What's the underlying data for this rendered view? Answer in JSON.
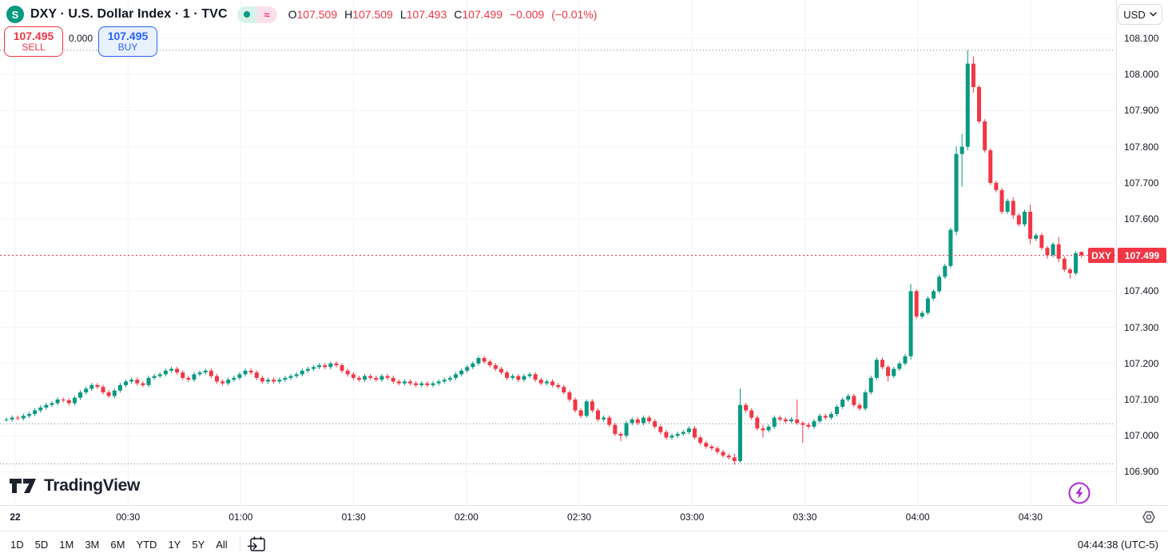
{
  "header": {
    "logo_letter": "S",
    "symbol_title": "DXY · U.S. Dollar Index · 1 · TVC",
    "status_delayed_glyph": "≈",
    "ohlc": {
      "o_label": "O",
      "o": "107.509",
      "h_label": "H",
      "h": "107.509",
      "l_label": "L",
      "l": "107.493",
      "c_label": "C",
      "c": "107.499",
      "change": "−0.009",
      "change_pct": "(−0.01%)"
    }
  },
  "trade_panel": {
    "sell_price": "107.495",
    "sell_label": "SELL",
    "spread": "0.000",
    "buy_price": "107.495",
    "buy_label": "BUY"
  },
  "currency_selector": {
    "value": "USD"
  },
  "price_tag": {
    "symbol": "DXY",
    "price": "107.499"
  },
  "watermark": {
    "logo_text": "TradingView"
  },
  "toolbar": {
    "ranges": [
      "1D",
      "5D",
      "1M",
      "3M",
      "6M",
      "YTD",
      "1Y",
      "5Y",
      "All"
    ],
    "clock": "04:44:38 (UTC-5)"
  },
  "colors": {
    "up": "#089981",
    "down": "#f23645",
    "grid": "#f0f3fa",
    "dotted_gray": "#787b86",
    "border": "#e0e3eb",
    "accent_blue": "#2962ff",
    "accent_purple": "#a82ad4"
  },
  "chart_data": {
    "type": "candlestick",
    "symbol": "DXY",
    "interval": "1 minute",
    "time_start": "00:00",
    "time_end": "04:44",
    "ylim": [
      106.85,
      108.13
    ],
    "grid": true,
    "y_tick_labels": [
      "108.100",
      "108.000",
      "107.900",
      "107.800",
      "107.700",
      "107.600",
      "107.400",
      "107.300",
      "107.200",
      "107.100",
      "107.000",
      "106.900"
    ],
    "y_tick_values": [
      108.1,
      108.0,
      107.9,
      107.8,
      107.7,
      107.6,
      107.4,
      107.3,
      107.2,
      107.1,
      107.0,
      106.9
    ],
    "grid_prices": [
      108.1,
      108.0,
      107.9,
      107.8,
      107.7,
      107.6,
      107.5,
      107.4,
      107.3,
      107.2,
      107.1,
      107.0,
      106.9
    ],
    "x_ticks": [
      {
        "label": "22",
        "minute": 0,
        "bold": true
      },
      {
        "label": "00:30",
        "minute": 30
      },
      {
        "label": "01:00",
        "minute": 60
      },
      {
        "label": "01:30",
        "minute": 90
      },
      {
        "label": "02:00",
        "minute": 120
      },
      {
        "label": "02:30",
        "minute": 150
      },
      {
        "label": "03:00",
        "minute": 180
      },
      {
        "label": "03:30",
        "minute": 210
      },
      {
        "label": "04:00",
        "minute": 240
      },
      {
        "label": "04:30",
        "minute": 270
      }
    ],
    "current_price": 107.499,
    "session_high_line": 108.067,
    "session_low_line": 106.922,
    "prev_close_line": 107.033,
    "candles_note": "each entry = close, or [open,high,low,close] for candles with notable wicks; ~1.5-min resolution from 00:00 to 04:44",
    "candles": [
      107.045,
      107.05,
      107.048,
      107.055,
      107.06,
      107.07,
      107.078,
      107.085,
      107.09,
      107.1,
      107.098,
      107.09,
      107.105,
      107.12,
      107.13,
      107.14,
      107.135,
      107.12,
      107.11,
      107.125,
      107.14,
      107.15,
      107.155,
      107.145,
      107.14,
      107.16,
      107.165,
      107.17,
      107.18,
      107.185,
      107.175,
      107.16,
      107.155,
      107.17,
      107.175,
      107.18,
      107.165,
      107.15,
      107.145,
      107.155,
      107.16,
      107.17,
      107.18,
      107.175,
      107.16,
      107.15,
      107.155,
      107.15,
      107.155,
      107.16,
      107.165,
      107.17,
      107.18,
      107.185,
      107.19,
      107.195,
      107.19,
      107.2,
      107.195,
      107.18,
      107.17,
      107.16,
      107.155,
      107.165,
      107.16,
      107.155,
      107.165,
      107.16,
      107.15,
      107.145,
      107.15,
      107.145,
      107.14,
      107.145,
      107.14,
      107.145,
      107.15,
      107.155,
      107.16,
      107.17,
      107.18,
      107.19,
      107.2,
      107.215,
      107.205,
      107.195,
      107.185,
      107.175,
      107.16,
      107.165,
      107.155,
      107.165,
      107.17,
      107.155,
      107.145,
      107.15,
      107.14,
      107.135,
      107.12,
      107.1,
      107.07,
      107.055,
      [
        107.055,
        107.1,
        107.05,
        107.095
      ],
      107.07,
      107.045,
      107.05,
      107.03,
      107.005,
      [
        107.005,
        107.01,
        106.985,
        107.0
      ],
      107.035,
      107.045,
      107.035,
      107.05,
      107.04,
      107.025,
      107.01,
      106.995,
      107.0,
      107.005,
      107.01,
      107.02,
      106.995,
      106.98,
      106.97,
      106.965,
      106.955,
      106.945,
      106.94,
      [
        106.94,
        106.95,
        106.92,
        106.93
      ],
      [
        106.93,
        107.13,
        106.925,
        107.085
      ],
      107.07,
      107.05,
      107.02,
      [
        107.02,
        107.03,
        106.995,
        107.015
      ],
      107.025,
      107.05,
      107.045,
      107.04,
      107.045,
      [
        107.045,
        107.1,
        107.03,
        107.035
      ],
      [
        107.035,
        107.04,
        106.98,
        107.03
      ],
      107.025,
      107.04,
      107.055,
      107.05,
      107.06,
      107.08,
      107.1,
      107.11,
      107.085,
      107.075,
      107.12,
      107.16,
      107.21,
      107.19,
      [
        107.19,
        107.195,
        107.15,
        107.165
      ],
      107.185,
      107.2,
      107.22,
      [
        107.22,
        107.42,
        107.21,
        107.4
      ],
      107.33,
      107.34,
      107.38,
      107.4,
      107.44,
      107.47,
      107.57,
      [
        107.565,
        107.8,
        107.555,
        107.78
      ],
      [
        107.78,
        107.835,
        107.69,
        107.8
      ],
      [
        107.8,
        108.067,
        107.79,
        108.03
      ],
      [
        108.03,
        108.05,
        107.95,
        107.965
      ],
      107.87,
      107.79,
      107.7,
      107.68,
      107.62,
      107.65,
      [
        107.65,
        107.66,
        107.6,
        107.61
      ],
      107.585,
      107.62,
      [
        107.62,
        107.64,
        107.53,
        107.545
      ],
      107.555,
      107.52,
      [
        107.52,
        107.525,
        107.49,
        107.5
      ],
      107.53,
      [
        107.53,
        107.55,
        107.48,
        107.49
      ],
      107.46,
      [
        107.46,
        107.465,
        107.435,
        107.45
      ],
      107.505,
      [
        107.509,
        107.509,
        107.493,
        107.499
      ]
    ]
  }
}
